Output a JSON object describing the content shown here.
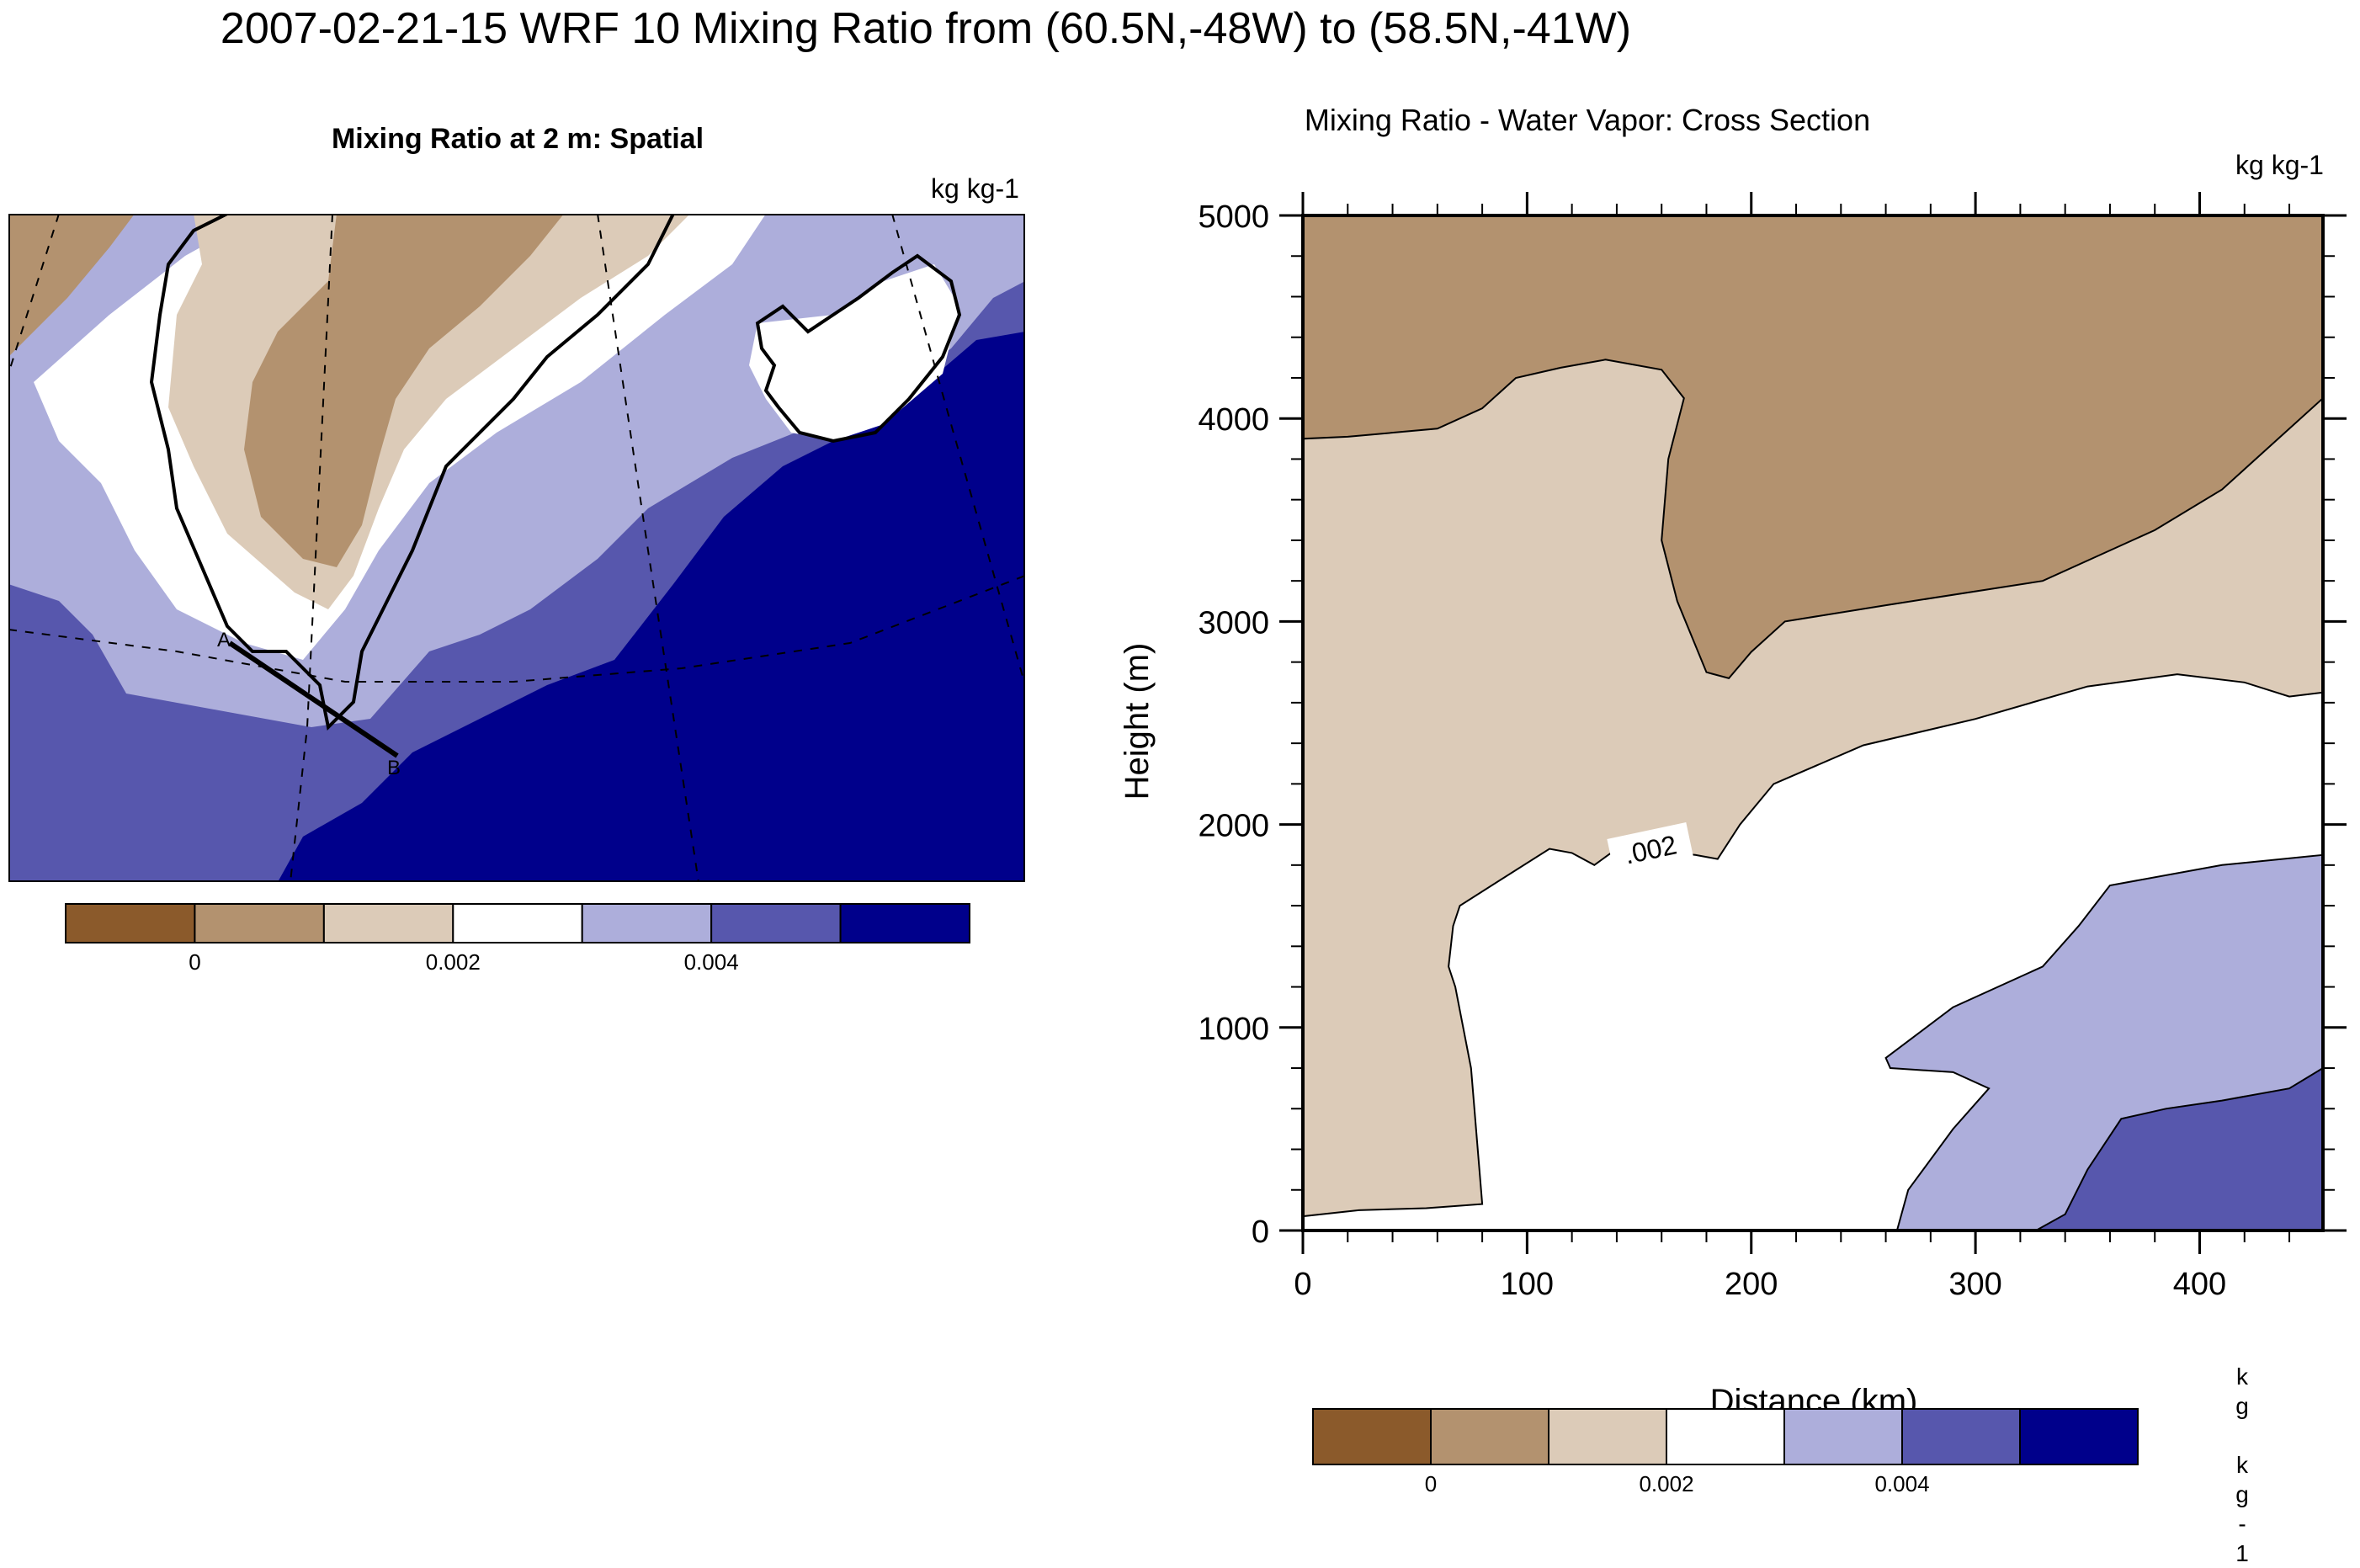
{
  "figure": {
    "title": "2007-02-21-15 WRF 10 Mixing Ratio from (60.5N,-48W) to (58.5N,-41W)"
  },
  "left_panel": {
    "title": "Mixing Ratio at 2 m: Spatial",
    "units": "kg kg-1",
    "point_a": "A",
    "point_b": "B",
    "colorbar": {
      "colors": [
        "#8b5a2b",
        "#b3926f",
        "#dccbb8",
        "#ffffff",
        "#adaedb",
        "#5757ad",
        "#00008b"
      ],
      "tick_labels": [
        "0",
        "0.002",
        "0.004"
      ]
    }
  },
  "right_panel": {
    "title": "Mixing Ratio - Water Vapor: Cross Section",
    "units": "kg kg-1",
    "contour_label": ".002",
    "colorbar": {
      "colors": [
        "#8b5a2b",
        "#b3926f",
        "#dccbb8",
        "#ffffff",
        "#adaedb",
        "#5757ad",
        "#00008b"
      ],
      "tick_labels": [
        "0",
        "0.002",
        "0.004"
      ]
    },
    "vertical_units_chars": [
      "k",
      "g",
      "",
      "k",
      "g",
      "-",
      "1"
    ]
  },
  "chart_data": [
    {
      "type": "heatmap",
      "title": "Mixing Ratio at 2 m: Spatial",
      "units": "kg kg-1",
      "levels": [
        0,
        0.001,
        0.002,
        0.003,
        0.004,
        0.005
      ],
      "colorbar_ticks": [
        0,
        0.002,
        0.004
      ],
      "transect": {
        "from": "A",
        "to": "B"
      }
    },
    {
      "type": "heatmap",
      "title": "Mixing Ratio - Water Vapor: Cross Section",
      "units": "kg kg-1",
      "xlabel": "Distance (km)",
      "ylabel": "Height (m)",
      "xlim": [
        0,
        455
      ],
      "ylim": [
        0,
        5000
      ],
      "xticks": [
        0,
        100,
        200,
        300,
        400
      ],
      "yticks": [
        0,
        1000,
        2000,
        3000,
        4000,
        5000
      ],
      "levels": [
        0,
        0.001,
        0.002,
        0.003,
        0.004,
        0.005
      ],
      "colorbar_ticks": [
        0,
        0.002,
        0.004
      ],
      "bands": [
        {
          "level": "0.001-0.002",
          "color": "#b3926f",
          "boundary_bottom_m": [
            [
              0,
              3900
            ],
            [
              20,
              3910
            ],
            [
              60,
              3950
            ],
            [
              80,
              4050
            ],
            [
              95,
              4200
            ],
            [
              115,
              4250
            ],
            [
              135,
              4290
            ],
            [
              160,
              4240
            ],
            [
              170,
              4100
            ],
            [
              163,
              3800
            ],
            [
              160,
              3400
            ],
            [
              167,
              3100
            ],
            [
              180,
              2750
            ],
            [
              190,
              2720
            ],
            [
              200,
              2850
            ],
            [
              215,
              3000
            ],
            [
              260,
              3080
            ],
            [
              330,
              3200
            ],
            [
              360,
              3350
            ],
            [
              380,
              3450
            ],
            [
              410,
              3650
            ],
            [
              430,
              3850
            ],
            [
              455,
              4100
            ]
          ]
        },
        {
          "level": "0.002-0.003",
          "color": "#dccbb8",
          "boundary_bottom_m": [
            [
              0,
              70
            ],
            [
              25,
              100
            ],
            [
              55,
              110
            ],
            [
              80,
              130
            ],
            [
              75,
              800
            ],
            [
              68,
              1200
            ],
            [
              65,
              1300
            ],
            [
              67,
              1500
            ],
            [
              70,
              1600
            ],
            [
              110,
              1880
            ],
            [
              120,
              1860
            ],
            [
              130,
              1800
            ],
            [
              140,
              1880
            ],
            [
              175,
              1850
            ],
            [
              185,
              1830
            ],
            [
              195,
              2000
            ],
            [
              210,
              2200
            ],
            [
              250,
              2390
            ],
            [
              300,
              2520
            ],
            [
              350,
              2680
            ],
            [
              390,
              2740
            ],
            [
              420,
              2700
            ],
            [
              440,
              2630
            ],
            [
              455,
              2650
            ]
          ]
        },
        {
          "level": "0.003-0.004",
          "color": "#ffffff",
          "contour_label": ".002"
        },
        {
          "level": "0.004-0.005",
          "color": "#adaedb",
          "boundary_top_m": [
            [
              265,
              0
            ],
            [
              270,
              200
            ],
            [
              290,
              500
            ],
            [
              306,
              700
            ],
            [
              290,
              780
            ],
            [
              262,
              800
            ],
            [
              260,
              850
            ],
            [
              290,
              1100
            ],
            [
              330,
              1300
            ],
            [
              346,
              1500
            ],
            [
              360,
              1700
            ],
            [
              410,
              1800
            ],
            [
              455,
              1850
            ]
          ]
        },
        {
          "level": "0.005+",
          "color": "#5757ad",
          "boundary_top_m": [
            [
              327,
              0
            ],
            [
              340,
              80
            ],
            [
              350,
              300
            ],
            [
              365,
              550
            ],
            [
              385,
              600
            ],
            [
              410,
              640
            ],
            [
              440,
              700
            ],
            [
              455,
              800
            ]
          ]
        }
      ]
    }
  ]
}
